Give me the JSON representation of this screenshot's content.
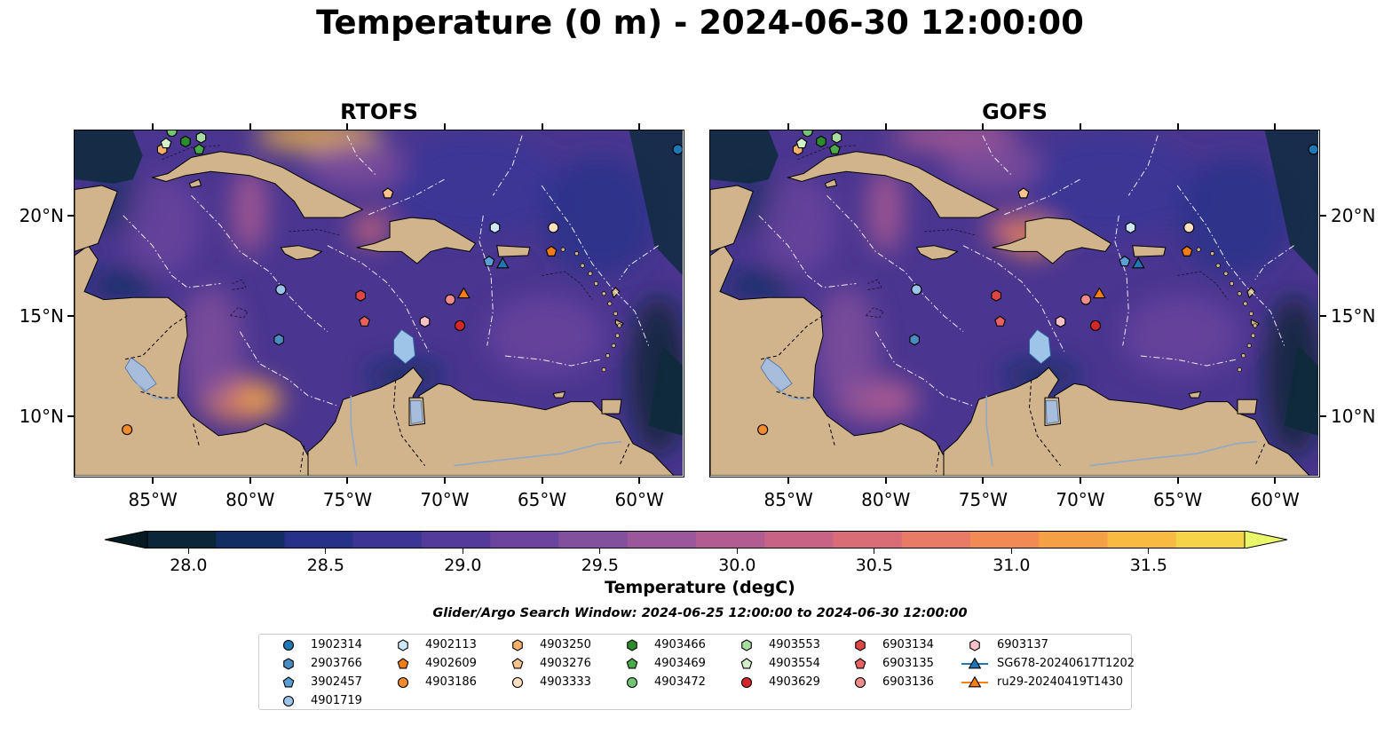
{
  "title": "Temperature (0 m) - 2024-06-30 12:00:00",
  "panels": [
    {
      "name": "rtofs",
      "title": "RTOFS"
    },
    {
      "name": "gofs",
      "title": "GOFS"
    }
  ],
  "map": {
    "lon_range": [
      -89.0,
      -57.75
    ],
    "lat_range": [
      7.0,
      24.25
    ],
    "lon_ticks": [
      {
        "value": -85,
        "label": "85°W"
      },
      {
        "value": -80,
        "label": "80°W"
      },
      {
        "value": -75,
        "label": "75°W"
      },
      {
        "value": -70,
        "label": "70°W"
      },
      {
        "value": -65,
        "label": "65°W"
      },
      {
        "value": -60,
        "label": "60°W"
      }
    ],
    "lat_ticks": [
      {
        "value": 10,
        "label": "10°N"
      },
      {
        "value": 15,
        "label": "15°N"
      },
      {
        "value": 20,
        "label": "20°N"
      }
    ],
    "colors": {
      "ocean_base": "#4a3690",
      "land": "#d2b48c",
      "deep": "#0d2a3a"
    }
  },
  "colorbar": {
    "label": "Temperature (degC)",
    "min": 28.0,
    "max": 31.5,
    "ticks": [
      "28.0",
      "28.5",
      "29.0",
      "29.5",
      "30.0",
      "30.5",
      "31.0",
      "31.5"
    ],
    "colors": [
      "#0b2637",
      "#112d63",
      "#28318a",
      "#3b3596",
      "#523b9b",
      "#6a449d",
      "#82509c",
      "#9a5799",
      "#b25c92",
      "#c86386",
      "#da6c77",
      "#e87a66",
      "#f18a54",
      "#f6a045",
      "#f8bb42",
      "#f5d44a"
    ],
    "over_color": "#e9f76b",
    "under_color": "#051a22"
  },
  "search_window": "Glider/Argo Search Window: 2024-06-25 12:00:00 to 2024-06-30 12:00:00",
  "legend": [
    {
      "label": "1902314",
      "marker": "circle",
      "color": "#1f77b4",
      "lon": -58.0,
      "lat": 23.3
    },
    {
      "label": "2903766",
      "marker": "hexagon",
      "color": "#4a8bc2",
      "lon": -78.5,
      "lat": 13.8
    },
    {
      "label": "3902457",
      "marker": "pentagon",
      "color": "#5aa0d6",
      "lon": -67.7,
      "lat": 17.7
    },
    {
      "label": "4901719",
      "marker": "circle",
      "color": "#9cc4e8",
      "lon": -78.4,
      "lat": 16.3
    },
    {
      "label": "4902113",
      "marker": "hexagon",
      "color": "#cfe8f8",
      "lon": -67.4,
      "lat": 19.4
    },
    {
      "label": "4902609",
      "marker": "pentagon",
      "color": "#f07d1a",
      "lon": -64.5,
      "lat": 18.2
    },
    {
      "label": "4903186",
      "marker": "circle",
      "color": "#f28a2e",
      "lon": -86.3,
      "lat": 9.3
    },
    {
      "label": "4903250",
      "marker": "hexagon",
      "color": "#f7b06a",
      "lon": -84.5,
      "lat": 23.3
    },
    {
      "label": "4903276",
      "marker": "pentagon",
      "color": "#f8c38c",
      "lon": -72.9,
      "lat": 21.1
    },
    {
      "label": "4903333",
      "marker": "circle",
      "color": "#fde0c0",
      "lon": -64.4,
      "lat": 19.4
    },
    {
      "label": "4903466",
      "marker": "hexagon",
      "color": "#2a8c2a",
      "lon": -83.3,
      "lat": 23.7
    },
    {
      "label": "4903469",
      "marker": "pentagon",
      "color": "#49ab49",
      "lon": -82.6,
      "lat": 23.3
    },
    {
      "label": "4903472",
      "marker": "circle",
      "color": "#74c476",
      "lon": -84.0,
      "lat": 24.2
    },
    {
      "label": "4903553",
      "marker": "hexagon",
      "color": "#a8dca0",
      "lon": -82.5,
      "lat": 23.9
    },
    {
      "label": "4903554",
      "marker": "pentagon",
      "color": "#d4f0c8",
      "lon": -84.3,
      "lat": 23.6
    },
    {
      "label": "4903629",
      "marker": "circle",
      "color": "#d62728",
      "lon": -69.2,
      "lat": 14.5
    },
    {
      "label": "6903134",
      "marker": "hexagon",
      "color": "#e04545",
      "lon": -74.3,
      "lat": 16.0
    },
    {
      "label": "6903135",
      "marker": "pentagon",
      "color": "#e86060",
      "lon": -74.1,
      "lat": 14.7
    },
    {
      "label": "6903136",
      "marker": "circle",
      "color": "#f08c8c",
      "lon": -69.7,
      "lat": 15.8
    },
    {
      "label": "6903137",
      "marker": "hexagon",
      "color": "#f8c0c8",
      "lon": -71.0,
      "lat": 14.7
    },
    {
      "label": "SG678-20240617T1202",
      "marker": "triangle",
      "color": "#1f77b4",
      "lon": -67.0,
      "lat": 17.6
    },
    {
      "label": "ru29-20240419T1430",
      "marker": "triangle",
      "color": "#ff7f0e",
      "lon": -69.0,
      "lat": 16.1
    }
  ]
}
